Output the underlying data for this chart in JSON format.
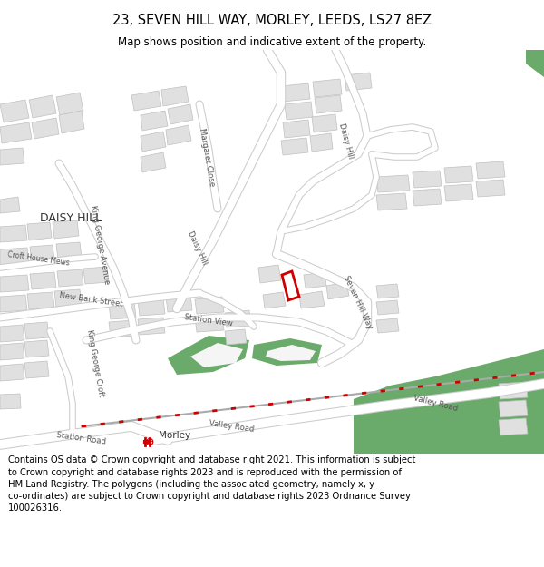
{
  "title": "23, SEVEN HILL WAY, MORLEY, LEEDS, LS27 8EZ",
  "subtitle": "Map shows position and indicative extent of the property.",
  "footer": "Contains OS data © Crown copyright and database right 2021. This information is subject to Crown copyright and database rights 2023 and is reproduced with the permission of HM Land Registry. The polygons (including the associated geometry, namely x, y co-ordinates) are subject to Crown copyright and database rights 2023 Ordnance Survey 100026316.",
  "bg_color": "#ffffff",
  "map_bg": "#f5f5f5",
  "road_color": "#ffffff",
  "road_border": "#cccccc",
  "building_fill": "#e0e0e0",
  "building_edge": "#c0c0c0",
  "green_color": "#6aaa6a",
  "highlight_color": "#cc0000",
  "title_fontsize": 10.5,
  "subtitle_fontsize": 8.5,
  "footer_fontsize": 7.2,
  "label_fontsize": 6.5
}
